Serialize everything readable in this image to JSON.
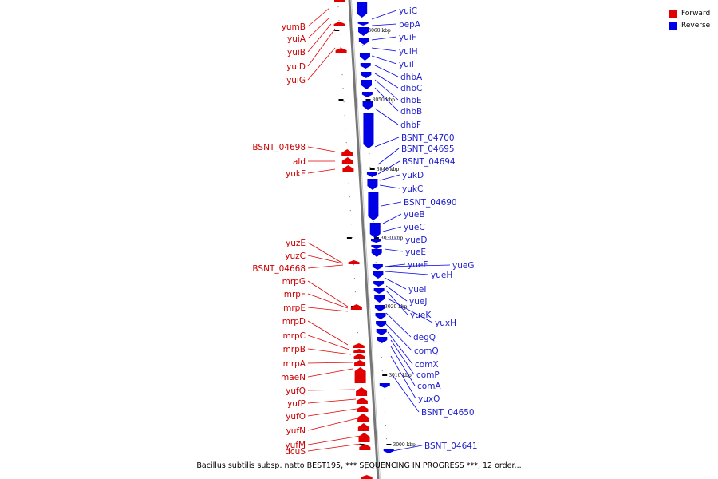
{
  "colors": {
    "forward": "#e00000",
    "reverse": "#0000e6",
    "axis": "#777777",
    "label_forward": "#cc0000",
    "label_reverse": "#1c1ccc"
  },
  "legend": [
    {
      "label": "Forward",
      "color": "#e00000"
    },
    {
      "label": "Reverse",
      "color": "#0000e6"
    }
  ],
  "caption": "Bacillus subtilis subsp. natto BEST195, *** SEQUENCING IN PROGRESS ***, 12 order...",
  "scale_ticks": [
    "3060 kbp",
    "3050 kbp",
    "3040 kbp",
    "3030 kbp",
    "3020 kbp",
    "3010 kbp",
    "3000 kbp"
  ],
  "forward_genes": [
    "yumB",
    "yuiA",
    "yuiB",
    "yuiD",
    "yuiG",
    "BSNT_04698",
    "ald",
    "yukF",
    "yuzE",
    "yuzC",
    "BSNT_04668",
    "mrpG",
    "mrpF",
    "mrpE",
    "mrpD",
    "mrpC",
    "mrpB",
    "mrpA",
    "maeN",
    "yufQ",
    "yufP",
    "yufO",
    "yufN",
    "yufM",
    "dcuS"
  ],
  "reverse_genes": [
    "yuiC",
    "pepA",
    "yuiF",
    "yuiH",
    "yuiI",
    "dhbA",
    "dhbC",
    "dhbE",
    "dhbB",
    "dhbF",
    "BSNT_04700",
    "BSNT_04695",
    "BSNT_04694",
    "yukD",
    "yukC",
    "BSNT_04690",
    "yueB",
    "yueC",
    "yueD",
    "yueE",
    "yueF",
    "yueG",
    "yueH",
    "yueI",
    "yueJ",
    "yueK",
    "yuxH",
    "degQ",
    "comQ",
    "comX",
    "comP",
    "comA",
    "yuxO",
    "BSNT_04650",
    "BSNT_04641"
  ]
}
